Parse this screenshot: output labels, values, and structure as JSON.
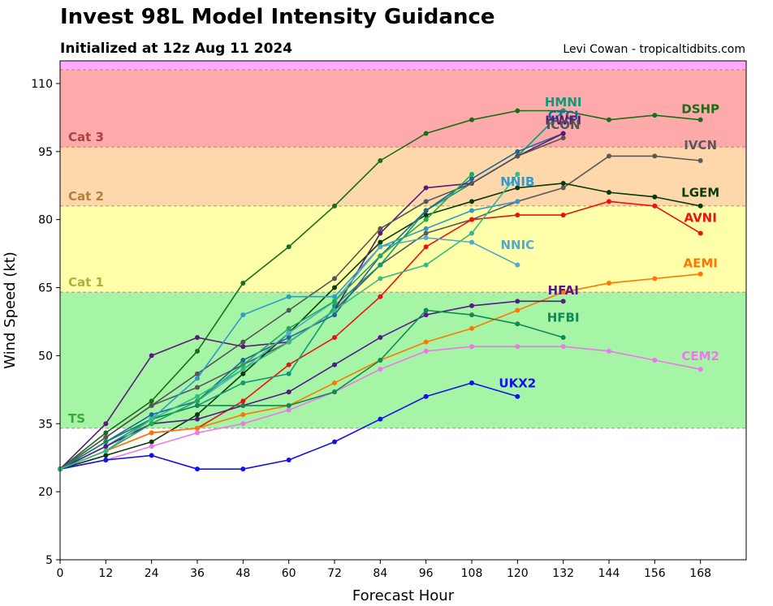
{
  "header": {
    "title": "Invest 98L Model Intensity Guidance",
    "subtitle": "Initialized at 12z Aug 11 2024",
    "credit": "Levi Cowan - tropicaltidbits.com"
  },
  "chart_data": {
    "type": "line",
    "title": "Invest 98L Model Intensity Guidance",
    "subtitle": "Initialized at 12z Aug 11 2024",
    "xlabel": "Forecast Hour",
    "ylabel": "Wind Speed (kt)",
    "xlim": [
      0,
      180
    ],
    "ylim": [
      5,
      115
    ],
    "xticks": [
      0,
      12,
      24,
      36,
      48,
      60,
      72,
      84,
      96,
      108,
      120,
      132,
      144,
      156,
      168
    ],
    "yticks": [
      5,
      20,
      35,
      50,
      65,
      80,
      95,
      110
    ],
    "bands": [
      {
        "name": "TS",
        "min": 34,
        "max": 64,
        "color": "#a6f5a6",
        "label_color": "#3aaa3a"
      },
      {
        "name": "Cat 1",
        "min": 64,
        "max": 83,
        "color": "#ffffaa",
        "label_color": "#b0b040"
      },
      {
        "name": "Cat 2",
        "min": 83,
        "max": 96,
        "color": "#fed8aa",
        "label_color": "#b08040"
      },
      {
        "name": "Cat 3",
        "min": 96,
        "max": 113,
        "color": "#ffaaaa",
        "label_color": "#b04040"
      },
      {
        "name": "",
        "min": 113,
        "max": 115,
        "color": "#ffaaff",
        "label_color": "#b040b0"
      }
    ],
    "series": [
      {
        "name": "DSHP",
        "color": "#1a6e1a",
        "label_x": 168,
        "label_y": 103.5,
        "x": [
          0,
          12,
          24,
          36,
          48,
          60,
          72,
          84,
          96,
          108,
          120,
          132,
          144,
          156,
          168
        ],
        "y": [
          25,
          33,
          40,
          51,
          66,
          74,
          83,
          93,
          99,
          102,
          104,
          104,
          102,
          103,
          102
        ]
      },
      {
        "name": "IVCN",
        "color": "#5a5a5a",
        "label_x": 168,
        "label_y": 95.5,
        "x": [
          0,
          12,
          24,
          36,
          48,
          60,
          72,
          84,
          96,
          108,
          120,
          132,
          144,
          156,
          168
        ],
        "y": [
          25,
          32,
          39,
          43,
          48,
          53,
          60,
          70,
          77,
          80,
          84,
          87,
          94,
          94,
          93
        ]
      },
      {
        "name": "LGEM",
        "color": "#0a3a0a",
        "label_x": 168,
        "label_y": 85,
        "x": [
          0,
          12,
          24,
          36,
          48,
          60,
          72,
          84,
          96,
          108,
          120,
          132,
          144,
          156,
          168
        ],
        "y": [
          25,
          28,
          31,
          37,
          46,
          55,
          65,
          75,
          81,
          84,
          87,
          88,
          86,
          85,
          83
        ]
      },
      {
        "name": "AVNI",
        "color": "#ee1111",
        "label_x": 168,
        "label_y": 79.5,
        "x": [
          0,
          12,
          24,
          36,
          48,
          60,
          72,
          84,
          96,
          108,
          120,
          132,
          144,
          156,
          168
        ],
        "y": [
          25,
          29,
          33,
          34,
          40,
          48,
          54,
          63,
          74,
          80,
          81,
          81,
          84,
          83,
          77
        ]
      },
      {
        "name": "AEMI",
        "color": "#ff7700",
        "label_x": 168,
        "label_y": 69.5,
        "x": [
          0,
          12,
          24,
          36,
          48,
          60,
          72,
          84,
          96,
          108,
          120,
          132,
          144,
          156,
          168
        ],
        "y": [
          25,
          29,
          33,
          34,
          37,
          39,
          44,
          49,
          53,
          56,
          60,
          64,
          66,
          67,
          68
        ]
      },
      {
        "name": "CEM2",
        "color": "#ee77ee",
        "label_x": 168,
        "label_y": 49,
        "x": [
          0,
          12,
          24,
          36,
          48,
          60,
          72,
          84,
          96,
          108,
          120,
          132,
          144,
          156,
          168
        ],
        "y": [
          25,
          27,
          30,
          33,
          35,
          38,
          42,
          47,
          51,
          52,
          52,
          52,
          51,
          49,
          47
        ]
      },
      {
        "name": "HMNI",
        "color": "#119977",
        "label_x": 132,
        "label_y": 105,
        "x": [
          0,
          12,
          24,
          36,
          48,
          60,
          72,
          84,
          96,
          108,
          120,
          132
        ],
        "y": [
          25,
          30,
          36,
          39,
          44,
          46,
          61,
          70,
          82,
          88,
          94,
          104
        ]
      },
      {
        "name": "CTCI",
        "color": "#226699",
        "label_x": 132,
        "label_y": 102,
        "x": [
          0,
          12,
          24,
          36,
          48,
          60,
          72,
          84,
          96,
          108,
          120,
          132
        ],
        "y": [
          25,
          31,
          37,
          40,
          49,
          54,
          59,
          72,
          82,
          89,
          95,
          99
        ]
      },
      {
        "name": "HWFI",
        "color": "#5a1a7a",
        "label_x": 132,
        "label_y": 101,
        "x": [
          0,
          12,
          24,
          36,
          48,
          60,
          72,
          84,
          96,
          108,
          120,
          132
        ],
        "y": [
          25,
          35,
          50,
          54,
          52,
          53,
          60,
          77,
          87,
          88,
          94,
          99
        ]
      },
      {
        "name": "ICON",
        "color": "#555555",
        "label_x": 132,
        "label_y": 100,
        "x": [
          0,
          12,
          24,
          36,
          48,
          60,
          72,
          84,
          96,
          108,
          120,
          132
        ],
        "y": [
          25,
          32,
          39,
          46,
          53,
          60,
          67,
          78,
          84,
          88,
          94,
          98
        ]
      },
      {
        "name": "NNIB",
        "color": "#3399cc",
        "label_x": 120,
        "label_y": 87.5,
        "x": [
          0,
          12,
          24,
          36,
          48,
          60,
          72,
          84,
          96,
          108,
          120
        ],
        "y": [
          25,
          31,
          36,
          45,
          59,
          63,
          63,
          74,
          78,
          82,
          84
        ]
      },
      {
        "name": "NNIC",
        "color": "#55aacc",
        "label_x": 120,
        "label_y": 73.5,
        "x": [
          0,
          12,
          24,
          36,
          48,
          60,
          72,
          84,
          96,
          108,
          120
        ],
        "y": [
          25,
          30,
          35,
          40,
          47,
          55,
          62,
          74,
          76,
          75,
          70
        ]
      },
      {
        "name": "HFAI",
        "color": "#551a88",
        "label_x": 132,
        "label_y": 63.5,
        "x": [
          0,
          12,
          24,
          36,
          48,
          60,
          72,
          84,
          96,
          108,
          120,
          132
        ],
        "y": [
          25,
          30,
          35,
          36,
          39,
          42,
          48,
          54,
          59,
          61,
          62,
          62
        ]
      },
      {
        "name": "HFBI",
        "color": "#118855",
        "label_x": 132,
        "label_y": 57.5,
        "x": [
          0,
          12,
          24,
          36,
          48,
          60,
          72,
          84,
          96,
          108,
          120,
          132
        ],
        "y": [
          25,
          31,
          36,
          39,
          39,
          39,
          42,
          49,
          60,
          59,
          57,
          54
        ]
      },
      {
        "name": "UKX2",
        "color": "#1111ee",
        "label_x": 120,
        "label_y": 43,
        "x": [
          0,
          12,
          24,
          36,
          48,
          60,
          72,
          84,
          96,
          108,
          120
        ],
        "y": [
          25,
          27,
          28,
          25,
          25,
          27,
          31,
          36,
          41,
          44,
          41
        ]
      },
      {
        "name": "",
        "color": "#22aa55",
        "label_x": 0,
        "label_y": 0,
        "x": [
          0,
          12,
          24,
          36,
          48,
          60,
          72,
          84,
          96,
          108
        ],
        "y": [
          25,
          29,
          35,
          40,
          48,
          56,
          62,
          72,
          80,
          90
        ]
      },
      {
        "name": "",
        "color": "#33bb88",
        "label_x": 0,
        "label_y": 0,
        "x": [
          0,
          12,
          24,
          36,
          48,
          60,
          72,
          84,
          96,
          108,
          120
        ],
        "y": [
          25,
          29,
          36,
          41,
          47,
          53,
          60,
          67,
          70,
          77,
          90
        ]
      }
    ]
  }
}
